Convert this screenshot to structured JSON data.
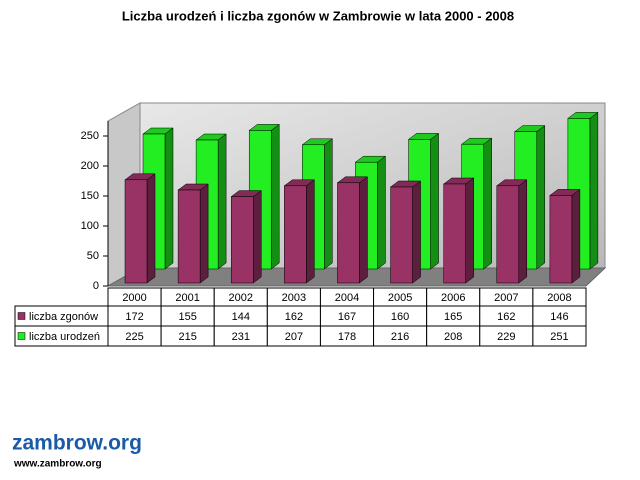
{
  "chart_data": {
    "type": "bar3d",
    "title": "Liczba urodzeń i liczba zgonów w Zambrowie w lata 2000 - 2008",
    "categories": [
      "2000",
      "2001",
      "2002",
      "2003",
      "2004",
      "2005",
      "2006",
      "2007",
      "2008"
    ],
    "series": [
      {
        "name": "liczba zgonów",
        "color": "#993366",
        "values": [
          172,
          155,
          144,
          162,
          167,
          160,
          165,
          162,
          146
        ]
      },
      {
        "name": "liczba urodzeń",
        "color": "#22ee22",
        "values": [
          225,
          215,
          231,
          207,
          178,
          216,
          208,
          229,
          251
        ]
      }
    ],
    "ylim": [
      0,
      250
    ],
    "yticks": [
      0,
      50,
      100,
      150,
      200,
      250
    ]
  },
  "logo": {
    "text": "zambrow.org",
    "url": "www.zambrow.org"
  }
}
